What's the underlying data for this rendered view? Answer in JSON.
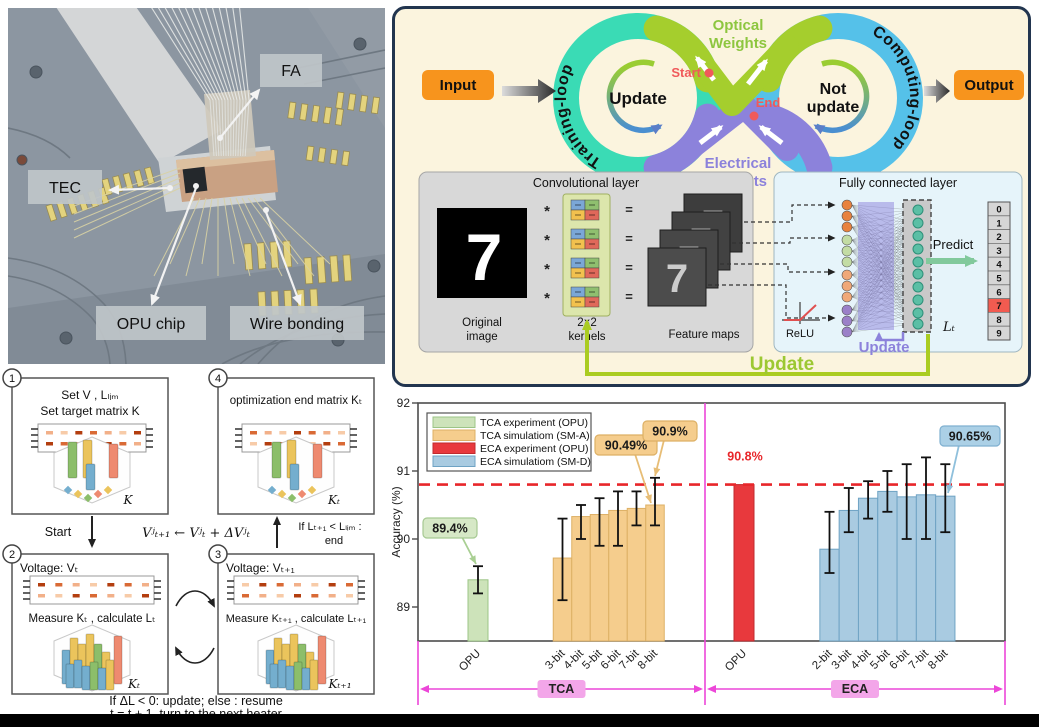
{
  "photo": {
    "labels": {
      "fa": "FA",
      "tec": "TEC",
      "opu_chip": "OPU chip",
      "wire_bonding": "Wire bonding"
    }
  },
  "scheme": {
    "input": "Input",
    "output": "Output",
    "training_loop": "Training-loop",
    "computing_loop": "Computing-loop",
    "update_left": "Update",
    "not_update_line1": "Not",
    "not_update_line2": "update",
    "optical_line1": "Optical",
    "optical_line2": "Weights",
    "electrical_line1": "Electrical",
    "electrical_line2": "Weights",
    "start": "Start",
    "end": "End",
    "conv": {
      "title": "Convolutional layer",
      "digit": "7",
      "multiply": "*",
      "equals": "=",
      "original_line1": "Original",
      "original_line2": "image",
      "kernels_line1": "2×2",
      "kernels_line2": "kernels",
      "feature_maps": "Feature maps"
    },
    "fc": {
      "title": "Fully connected layer",
      "relu": "ReLU",
      "predict": "Predict",
      "lt": "Lₜ",
      "update_inner": "Update",
      "update_outer": "Update",
      "digits": [
        "0",
        "1",
        "2",
        "3",
        "4",
        "5",
        "6",
        "7",
        "8",
        "9"
      ],
      "highlighted_digit": "7"
    }
  },
  "flowchart": {
    "step1": {
      "num": "1",
      "line1": "Set V , Lₗᵢₘ",
      "line2": "Set target matrix K",
      "matrix_label": "K"
    },
    "step2": {
      "num": "2",
      "title": "Voltage: Vₜ",
      "measure": "Measure Kₜ , calculate Lₜ",
      "matrix_label": "Kₜ"
    },
    "step3": {
      "num": "3",
      "title": "Voltage: Vₜ₊₁",
      "measure": "Measure Kₜ₊₁ , calculate Lₜ₊₁",
      "matrix_label": "Kₜ₊₁"
    },
    "step4": {
      "num": "4",
      "title": "optimization end matrix Kₜ",
      "matrix_label": "Kₜ"
    },
    "start_label": "Start",
    "update_formula": "Vʲₜ₊₁ ← Vʲₜ + ΔVʲₜ",
    "end_condition_line1": "If Lₜ₊₁ < Lₗᵢₘ :",
    "end_condition_line2": "end",
    "note_line1": "If ΔL < 0: update; else : resume",
    "note_line2": "t = t + 1, turn to the next heater"
  },
  "chart_data": {
    "type": "bar",
    "ylabel": "Accuracy (%)",
    "ylim": [
      88.5,
      92
    ],
    "yticks": [
      89,
      90,
      91,
      92
    ],
    "reference_line": {
      "value": 90.8,
      "color": "#e8262a",
      "style": "dashed"
    },
    "legend": [
      {
        "label": "TCA experiment (OPU)",
        "fill": "#cde3ba",
        "stroke": "#9cc487"
      },
      {
        "label": "TCA simulatiom (SM-A)",
        "fill": "#f5cd8d",
        "stroke": "#ddb065"
      },
      {
        "label": "ECA experiment (OPU)",
        "fill": "#e8393d",
        "stroke": "#c02a2e"
      },
      {
        "label": "ECA simulatiom (SM-D)",
        "fill": "#a9cbe1",
        "stroke": "#6fa3c4"
      }
    ],
    "groups": [
      {
        "label": "TCA",
        "bars": [
          {
            "category": "OPU",
            "value": 89.4,
            "err_low": 89.2,
            "err_high": 89.6,
            "series": 0
          },
          {
            "category": "3-bit",
            "value": 89.72,
            "err_low": 89.1,
            "err_high": 90.3,
            "series": 1
          },
          {
            "category": "4-bit",
            "value": 90.33,
            "err_low": 90.0,
            "err_high": 90.5,
            "series": 1
          },
          {
            "category": "5-bit",
            "value": 90.36,
            "err_low": 89.9,
            "err_high": 90.6,
            "series": 1
          },
          {
            "category": "6-bit",
            "value": 90.42,
            "err_low": 89.9,
            "err_high": 90.7,
            "series": 1
          },
          {
            "category": "7-bit",
            "value": 90.45,
            "err_low": 90.2,
            "err_high": 90.7,
            "series": 1
          },
          {
            "category": "8-bit",
            "value": 90.5,
            "err_low": 90.2,
            "err_high": 90.9,
            "series": 1
          }
        ]
      },
      {
        "label": "ECA",
        "bars": [
          {
            "category": "OPU",
            "value": 90.8,
            "err_low": null,
            "err_high": null,
            "series": 2
          },
          {
            "category": "2-bit",
            "value": 89.85,
            "err_low": 89.5,
            "err_high": 90.4,
            "series": 3
          },
          {
            "category": "3-bit",
            "value": 90.42,
            "err_low": 90.1,
            "err_high": 90.75,
            "series": 3
          },
          {
            "category": "4-bit",
            "value": 90.6,
            "err_low": 90.3,
            "err_high": 90.85,
            "series": 3
          },
          {
            "category": "5-bit",
            "value": 90.7,
            "err_low": 90.4,
            "err_high": 91.0,
            "series": 3
          },
          {
            "category": "6-bit",
            "value": 90.62,
            "err_low": 90.0,
            "err_high": 91.1,
            "series": 3
          },
          {
            "category": "7-bit",
            "value": 90.65,
            "err_low": 90.0,
            "err_high": 91.2,
            "series": 3
          },
          {
            "category": "8-bit",
            "value": 90.63,
            "err_low": 90.1,
            "err_high": 91.1,
            "series": 3
          }
        ]
      }
    ],
    "annotations": [
      {
        "text": "89.4%",
        "box_fill": "#d6e8c6",
        "box_stroke": "#a6c992",
        "color": "#1a1a1a",
        "arrow": "#a9cf93"
      },
      {
        "text": "90.49%",
        "box_fill": "#f5cd8d",
        "box_stroke": "#ddb065",
        "color": "#1a1a1a",
        "arrow": "#e7bd76"
      },
      {
        "text": "90.9%",
        "box_fill": "#f5cd8d",
        "box_stroke": "#ddb065",
        "color": "#1a1a1a",
        "arrow": "#e7bd76"
      },
      {
        "text": "90.8%",
        "box_fill": "none",
        "box_stroke": "none",
        "color": "#e8262a",
        "arrow": null
      },
      {
        "text": "90.65%",
        "box_fill": "#abd0e6",
        "box_stroke": "#7fb0d0",
        "color": "#1a1a1a",
        "arrow": "#8fc0dc"
      }
    ],
    "group_axis_color": "#ec46d8"
  }
}
